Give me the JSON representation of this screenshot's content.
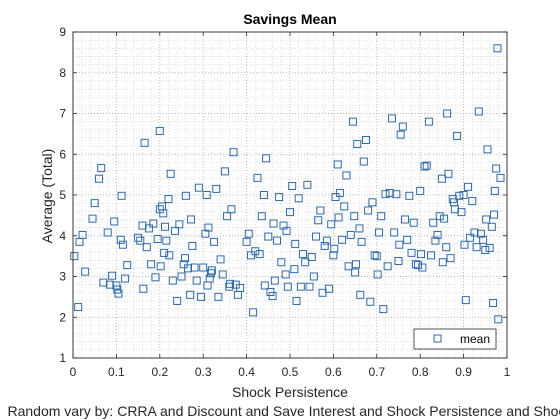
{
  "chart_data": {
    "type": "scatter",
    "title": "Savings Mean",
    "xlabel": "Shock Persistence",
    "ylabel": "Average (Total)",
    "footnote": "Random vary by: CRRA and Discount and Save Interest and Shock Persistence and Shock",
    "xlim": [
      0,
      1
    ],
    "ylim": [
      1,
      9
    ],
    "xticks": [
      "0",
      "0.1",
      "0.2",
      "0.3",
      "0.4",
      "0.5",
      "0.6",
      "0.7",
      "0.8",
      "0.9",
      "1"
    ],
    "yticks": [
      "1",
      "2",
      "3",
      "4",
      "5",
      "6",
      "7",
      "8",
      "9"
    ],
    "grid": "dotted",
    "minor_grid": true,
    "legend": {
      "position": "bottom-right",
      "entries": [
        "mean"
      ]
    },
    "marker": "square",
    "color": "#2e6aa8",
    "series": [
      {
        "name": "mean",
        "points": [
          [
            0.003,
            3.5
          ],
          [
            0.012,
            2.25
          ],
          [
            0.015,
            3.85
          ],
          [
            0.022,
            4.02
          ],
          [
            0.028,
            3.12
          ],
          [
            0.045,
            4.42
          ],
          [
            0.05,
            4.8
          ],
          [
            0.06,
            5.4
          ],
          [
            0.065,
            5.66
          ],
          [
            0.07,
            2.85
          ],
          [
            0.08,
            4.08
          ],
          [
            0.085,
            2.8
          ],
          [
            0.09,
            3.02
          ],
          [
            0.095,
            4.35
          ],
          [
            0.1,
            2.78
          ],
          [
            0.102,
            2.68
          ],
          [
            0.105,
            2.58
          ],
          [
            0.11,
            3.9
          ],
          [
            0.112,
            4.98
          ],
          [
            0.115,
            3.78
          ],
          [
            0.12,
            2.95
          ],
          [
            0.125,
            3.28
          ],
          [
            0.15,
            3.95
          ],
          [
            0.155,
            3.88
          ],
          [
            0.16,
            4.25
          ],
          [
            0.162,
            2.7
          ],
          [
            0.165,
            6.28
          ],
          [
            0.17,
            3.72
          ],
          [
            0.175,
            4.18
          ],
          [
            0.18,
            3.3
          ],
          [
            0.185,
            4.3
          ],
          [
            0.19,
            2.98
          ],
          [
            0.195,
            3.92
          ],
          [
            0.2,
            6.57
          ],
          [
            0.2,
            4.65
          ],
          [
            0.202,
            3.25
          ],
          [
            0.205,
            4.72
          ],
          [
            0.208,
            4.55
          ],
          [
            0.21,
            3.58
          ],
          [
            0.212,
            4.22
          ],
          [
            0.215,
            3.88
          ],
          [
            0.22,
            4.9
          ],
          [
            0.222,
            3.52
          ],
          [
            0.225,
            5.52
          ],
          [
            0.23,
            2.9
          ],
          [
            0.235,
            4.12
          ],
          [
            0.24,
            2.4
          ],
          [
            0.245,
            4.28
          ],
          [
            0.25,
            3.0
          ],
          [
            0.255,
            3.3
          ],
          [
            0.258,
            3.45
          ],
          [
            0.26,
            4.98
          ],
          [
            0.265,
            3.2
          ],
          [
            0.27,
            2.55
          ],
          [
            0.272,
            4.4
          ],
          [
            0.275,
            3.75
          ],
          [
            0.28,
            3.22
          ],
          [
            0.285,
            2.9
          ],
          [
            0.29,
            5.18
          ],
          [
            0.295,
            2.5
          ],
          [
            0.3,
            3.22
          ],
          [
            0.305,
            4.05
          ],
          [
            0.308,
            5.0
          ],
          [
            0.31,
            2.78
          ],
          [
            0.312,
            4.2
          ],
          [
            0.315,
            2.95
          ],
          [
            0.318,
            3.08
          ],
          [
            0.32,
            3.15
          ],
          [
            0.325,
            3.85
          ],
          [
            0.33,
            5.15
          ],
          [
            0.335,
            2.5
          ],
          [
            0.34,
            3.42
          ],
          [
            0.345,
            3.05
          ],
          [
            0.35,
            5.58
          ],
          [
            0.355,
            4.48
          ],
          [
            0.36,
            2.75
          ],
          [
            0.362,
            2.82
          ],
          [
            0.365,
            4.65
          ],
          [
            0.37,
            6.05
          ],
          [
            0.375,
            2.8
          ],
          [
            0.38,
            2.55
          ],
          [
            0.385,
            2.72
          ],
          [
            0.4,
            3.85
          ],
          [
            0.405,
            4.05
          ],
          [
            0.41,
            3.52
          ],
          [
            0.415,
            2.12
          ],
          [
            0.42,
            3.62
          ],
          [
            0.425,
            5.42
          ],
          [
            0.43,
            3.55
          ],
          [
            0.435,
            4.48
          ],
          [
            0.44,
            5.0
          ],
          [
            0.442,
            2.78
          ],
          [
            0.445,
            5.9
          ],
          [
            0.45,
            3.98
          ],
          [
            0.455,
            2.62
          ],
          [
            0.46,
            2.52
          ],
          [
            0.462,
            4.3
          ],
          [
            0.465,
            2.9
          ],
          [
            0.47,
            3.88
          ],
          [
            0.475,
            4.95
          ],
          [
            0.48,
            3.35
          ],
          [
            0.485,
            4.25
          ],
          [
            0.49,
            3.05
          ],
          [
            0.492,
            4.12
          ],
          [
            0.495,
            2.75
          ],
          [
            0.5,
            4.58
          ],
          [
            0.505,
            5.22
          ],
          [
            0.51,
            3.18
          ],
          [
            0.512,
            3.8
          ],
          [
            0.515,
            2.4
          ],
          [
            0.52,
            4.92
          ],
          [
            0.525,
            2.75
          ],
          [
            0.53,
            3.55
          ],
          [
            0.535,
            3.35
          ],
          [
            0.54,
            5.25
          ],
          [
            0.545,
            2.75
          ],
          [
            0.55,
            3.48
          ],
          [
            0.555,
            3.0
          ],
          [
            0.56,
            3.98
          ],
          [
            0.565,
            4.38
          ],
          [
            0.57,
            4.62
          ],
          [
            0.575,
            2.6
          ],
          [
            0.58,
            3.75
          ],
          [
            0.585,
            3.88
          ],
          [
            0.59,
            2.7
          ],
          [
            0.595,
            4.28
          ],
          [
            0.6,
            3.52
          ],
          [
            0.602,
            3.68
          ],
          [
            0.605,
            4.95
          ],
          [
            0.61,
            5.75
          ],
          [
            0.612,
            4.45
          ],
          [
            0.615,
            5.05
          ],
          [
            0.62,
            3.9
          ],
          [
            0.625,
            4.72
          ],
          [
            0.63,
            5.48
          ],
          [
            0.635,
            3.25
          ],
          [
            0.64,
            4.02
          ],
          [
            0.645,
            6.8
          ],
          [
            0.648,
            4.48
          ],
          [
            0.65,
            3.1
          ],
          [
            0.652,
            3.3
          ],
          [
            0.655,
            6.25
          ],
          [
            0.66,
            4.18
          ],
          [
            0.662,
            2.55
          ],
          [
            0.665,
            3.85
          ],
          [
            0.67,
            5.82
          ],
          [
            0.675,
            6.35
          ],
          [
            0.68,
            4.62
          ],
          [
            0.685,
            2.38
          ],
          [
            0.69,
            4.82
          ],
          [
            0.695,
            3.52
          ],
          [
            0.7,
            3.5
          ],
          [
            0.702,
            3.05
          ],
          [
            0.705,
            4.08
          ],
          [
            0.71,
            4.48
          ],
          [
            0.715,
            2.2
          ],
          [
            0.72,
            5.02
          ],
          [
            0.725,
            3.25
          ],
          [
            0.73,
            5.05
          ],
          [
            0.735,
            6.88
          ],
          [
            0.74,
            4.08
          ],
          [
            0.745,
            5.02
          ],
          [
            0.75,
            3.38
          ],
          [
            0.752,
            3.78
          ],
          [
            0.755,
            6.48
          ],
          [
            0.76,
            6.68
          ],
          [
            0.765,
            4.4
          ],
          [
            0.77,
            3.9
          ],
          [
            0.775,
            4.98
          ],
          [
            0.78,
            3.58
          ],
          [
            0.785,
            4.32
          ],
          [
            0.79,
            3.3
          ],
          [
            0.795,
            3.28
          ],
          [
            0.8,
            5.1
          ],
          [
            0.802,
            3.55
          ],
          [
            0.805,
            3.22
          ],
          [
            0.81,
            5.7
          ],
          [
            0.815,
            5.72
          ],
          [
            0.82,
            6.8
          ],
          [
            0.825,
            3.52
          ],
          [
            0.83,
            4.32
          ],
          [
            0.835,
            3.88
          ],
          [
            0.84,
            4.02
          ],
          [
            0.845,
            4.48
          ],
          [
            0.85,
            5.4
          ],
          [
            0.852,
            3.35
          ],
          [
            0.855,
            4.42
          ],
          [
            0.86,
            3.72
          ],
          [
            0.862,
            7.0
          ],
          [
            0.865,
            5.52
          ],
          [
            0.87,
            3.45
          ],
          [
            0.875,
            4.9
          ],
          [
            0.878,
            4.82
          ],
          [
            0.88,
            4.65
          ],
          [
            0.885,
            6.45
          ],
          [
            0.89,
            4.98
          ],
          [
            0.895,
            4.58
          ],
          [
            0.9,
            5.0
          ],
          [
            0.902,
            3.78
          ],
          [
            0.905,
            2.42
          ],
          [
            0.91,
            5.2
          ],
          [
            0.915,
            3.95
          ],
          [
            0.92,
            4.85
          ],
          [
            0.925,
            4.08
          ],
          [
            0.93,
            3.72
          ],
          [
            0.935,
            7.05
          ],
          [
            0.94,
            4.05
          ],
          [
            0.945,
            3.9
          ],
          [
            0.95,
            3.65
          ],
          [
            0.952,
            4.4
          ],
          [
            0.955,
            6.12
          ],
          [
            0.96,
            3.7
          ],
          [
            0.965,
            4.22
          ],
          [
            0.968,
            2.35
          ],
          [
            0.97,
            4.52
          ],
          [
            0.972,
            5.1
          ],
          [
            0.975,
            5.65
          ],
          [
            0.978,
            8.6
          ],
          [
            0.98,
            1.95
          ],
          [
            0.985,
            5.42
          ]
        ]
      }
    ]
  }
}
